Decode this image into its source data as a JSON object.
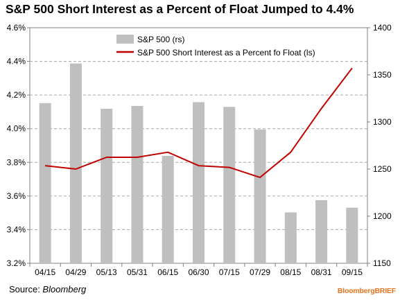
{
  "chart_data": {
    "type": "bar+line",
    "title": "S&P 500 Short Interest as a Percent of Float Jumped to 4.4%",
    "categories": [
      "04/15",
      "04/29",
      "05/13",
      "05/31",
      "06/15",
      "06/30",
      "07/15",
      "07/29",
      "08/15",
      "08/31",
      "09/15"
    ],
    "series": [
      {
        "name": "S&P 500 (rs)",
        "kind": "bar",
        "axis": "right",
        "color": "#bfbfbf",
        "values": [
          1320,
          1362,
          1314,
          1317,
          1264,
          1321,
          1316,
          1292,
          1204,
          1217,
          1209
        ]
      },
      {
        "name": "S&P 500 Short Interest as a Percent fo Float (ls)",
        "kind": "line",
        "axis": "left",
        "color": "#c00000",
        "values": [
          3.78,
          3.76,
          3.83,
          3.83,
          3.86,
          3.78,
          3.77,
          3.71,
          3.86,
          4.12,
          4.36
        ]
      }
    ],
    "y_left": {
      "min": 3.2,
      "max": 4.6,
      "step": 0.2,
      "ticks": [
        "3.2%",
        "3.4%",
        "3.6%",
        "3.8%",
        "4.0%",
        "4.2%",
        "4.4%",
        "4.6%"
      ]
    },
    "y_right": {
      "min": 1150,
      "max": 1400,
      "step": 50,
      "ticks": [
        "1150",
        "1200",
        "1250",
        "1300",
        "1350",
        "1400"
      ]
    },
    "grid": "horizontal dashed",
    "legend_placement": "top-center"
  },
  "source": {
    "label": "Source: ",
    "name": "Bloomberg"
  },
  "brand": "BloombergBRIEF"
}
